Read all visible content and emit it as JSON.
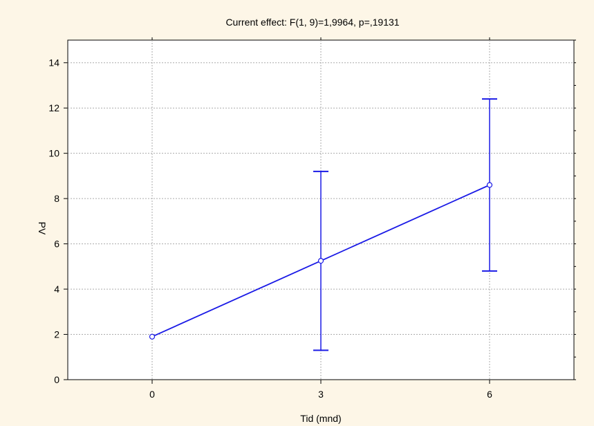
{
  "chart_data": {
    "type": "line",
    "title": "Current effect: F(1, 9)=1,9964, p=,19131",
    "xlabel": "Tid (mnd)",
    "ylabel": "PV",
    "x": [
      0,
      3,
      6
    ],
    "x_tick_labels": [
      "0",
      "3",
      "6"
    ],
    "xlim": [
      -1.5,
      7.5
    ],
    "ylim": [
      0,
      15
    ],
    "y_ticks": [
      0,
      2,
      4,
      6,
      8,
      10,
      12,
      14
    ],
    "y_tick_labels": [
      "0",
      "2",
      "4",
      "6",
      "8",
      "10",
      "12",
      "14"
    ],
    "grid": true,
    "series": [
      {
        "values": [
          1.9,
          5.25,
          8.6
        ],
        "error_lower": [
          null,
          1.3,
          4.8
        ],
        "error_upper": [
          null,
          9.2,
          12.4
        ],
        "color": "#1a1ae6"
      }
    ]
  }
}
